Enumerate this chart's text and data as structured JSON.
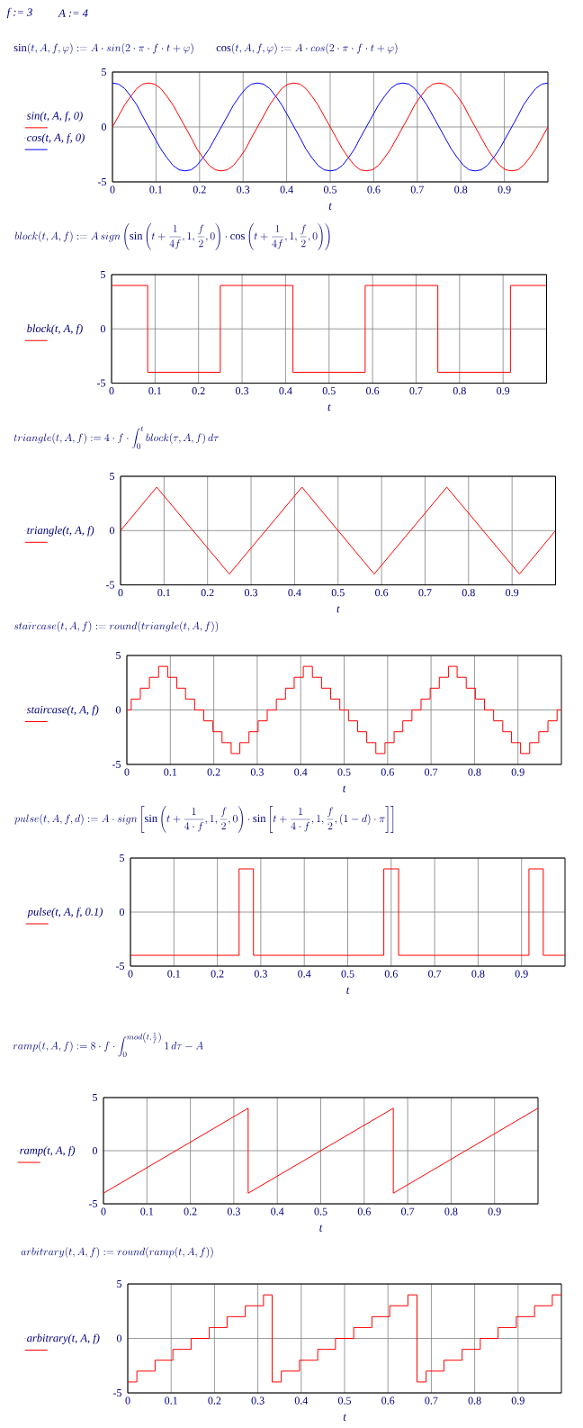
{
  "chart_data": [
    {
      "type": "line",
      "annotations": [
        "f := 3",
        "A := 4"
      ],
      "title": "\\mathrm{sin}(t,A,f,\\varphi) := A\\cdot sin(2\\cdot \\pi \\cdot f\\cdot t+\\varphi)",
      "subtitle": "\\mathrm{cos}(t,A,f,\\varphi) := A\\cdot cos(2\\cdot \\pi \\cdot f\\cdot t+\\varphi)",
      "xlabel": "t",
      "legend": "left",
      "grid": true,
      "xlim": [
        0,
        1
      ],
      "ylim": [
        -5,
        5
      ],
      "xticks": [
        0,
        0.1,
        0.2,
        0.3,
        0.4,
        0.5,
        0.6,
        0.7,
        0.8,
        0.9
      ],
      "yticks": [
        -5,
        0,
        5
      ],
      "x": [
        0,
        0.014,
        0.028,
        0.042,
        0.056,
        0.069,
        0.083,
        0.097,
        0.111,
        0.125,
        0.139,
        0.153,
        0.167,
        0.181,
        0.194,
        0.208,
        0.222,
        0.236,
        0.25,
        0.264,
        0.278,
        0.292,
        0.306,
        0.319,
        0.333,
        0.347,
        0.361,
        0.375,
        0.389,
        0.403,
        0.417,
        0.431,
        0.444,
        0.458,
        0.472,
        0.486,
        0.5,
        0.514,
        0.528,
        0.542,
        0.556,
        0.569,
        0.583,
        0.597,
        0.611,
        0.625,
        0.639,
        0.653,
        0.667,
        0.681,
        0.694,
        0.708,
        0.722,
        0.736,
        0.75,
        0.764,
        0.778,
        0.792,
        0.806,
        0.819,
        0.833,
        0.847,
        0.861,
        0.875,
        0.889,
        0.903,
        0.917,
        0.931,
        0.944,
        0.958,
        0.972,
        0.986,
        1
      ],
      "series": [
        {
          "name": "sin(t, A, f, 0)",
          "color": "#ff0000",
          "values": [
            0,
            1,
            2,
            2.8,
            3.5,
            3.9,
            4,
            3.9,
            3.5,
            2.8,
            2,
            1,
            0,
            -1,
            -2,
            -2.8,
            -3.5,
            -3.9,
            -4,
            -3.9,
            -3.5,
            -2.8,
            -2,
            -1,
            0,
            1,
            2,
            2.8,
            3.5,
            3.9,
            4,
            3.9,
            3.5,
            2.8,
            2,
            1,
            0,
            -1,
            -2,
            -2.8,
            -3.5,
            -3.9,
            -4,
            -3.9,
            -3.5,
            -2.8,
            -2,
            -1,
            0,
            1,
            2,
            2.8,
            3.5,
            3.9,
            4,
            3.9,
            3.5,
            2.8,
            2,
            1,
            0,
            -1,
            -2,
            -2.8,
            -3.5,
            -3.9,
            -4,
            -3.9,
            -3.5,
            -2.8,
            -2,
            -1,
            0
          ]
        },
        {
          "name": "cos(t, A, f, 0)",
          "color": "#0000ff",
          "values": [
            4,
            3.9,
            3.5,
            2.8,
            2,
            1,
            0,
            -1,
            -2,
            -2.8,
            -3.5,
            -3.9,
            -4,
            -3.9,
            -3.5,
            -2.8,
            -2,
            -1,
            0,
            1,
            2,
            2.8,
            3.5,
            3.9,
            4,
            3.9,
            3.5,
            2.8,
            2,
            1,
            0,
            -1,
            -2,
            -2.8,
            -3.5,
            -3.9,
            -4,
            -3.9,
            -3.5,
            -2.8,
            -2,
            -1,
            0,
            1,
            2,
            2.8,
            3.5,
            3.9,
            4,
            3.9,
            3.5,
            2.8,
            2,
            1,
            0,
            -1,
            -2,
            -2.8,
            -3.5,
            -3.9,
            -4,
            -3.9,
            -3.5,
            -2.8,
            -2,
            -1,
            0,
            1,
            2,
            2.8,
            3.5,
            3.9,
            4
          ]
        }
      ]
    },
    {
      "type": "step",
      "title": "block(t,A,f) := A\\,sign\\left(\\mathrm{sin}\\left(t+\\frac{1}{4f},1,\\frac{f}{2},0\\right)\\cdot \\mathrm{cos}\\left(t+\\frac{1}{4f},1,\\frac{f}{2},0\\right)\\right)",
      "xlabel": "t",
      "legend": "left",
      "grid": true,
      "xlim": [
        0,
        1
      ],
      "ylim": [
        -5,
        5
      ],
      "xticks": [
        0,
        0.1,
        0.2,
        0.3,
        0.4,
        0.5,
        0.6,
        0.7,
        0.8,
        0.9
      ],
      "yticks": [
        -5,
        0,
        5
      ],
      "x": [
        0,
        0.083,
        0.25,
        0.417,
        0.583,
        0.75,
        0.917,
        1
      ],
      "series": [
        {
          "name": "block(t, A, f)",
          "color": "#ff0000",
          "values": [
            4,
            -4,
            4,
            -4,
            4,
            -4,
            4,
            4
          ]
        }
      ]
    },
    {
      "type": "line",
      "title": "triangle(t,A,f) := 4\\cdot f\\cdot \\int_{0}^{t} block(\\tau,A,f)\\,d\\tau",
      "xlabel": "t",
      "legend": "left",
      "grid": true,
      "xlim": [
        0,
        1
      ],
      "ylim": [
        -5,
        5
      ],
      "xticks": [
        0,
        0.1,
        0.2,
        0.3,
        0.4,
        0.5,
        0.6,
        0.7,
        0.8,
        0.9
      ],
      "yticks": [
        -5,
        0,
        5
      ],
      "x": [
        0,
        0.083,
        0.25,
        0.417,
        0.583,
        0.75,
        0.917,
        1
      ],
      "series": [
        {
          "name": "triangle(t, A, f)",
          "color": "#ff0000",
          "values": [
            0,
            4,
            -4,
            4,
            -4,
            4,
            -4,
            0
          ]
        }
      ]
    },
    {
      "type": "step",
      "title": "staircase(t,A,f) := round(triangle(t,A,f))",
      "xlabel": "t",
      "legend": "left",
      "grid": true,
      "xlim": [
        0,
        1
      ],
      "ylim": [
        -5,
        5
      ],
      "xticks": [
        0,
        0.1,
        0.2,
        0.3,
        0.4,
        0.5,
        0.6,
        0.7,
        0.8,
        0.9
      ],
      "yticks": [
        -5,
        0,
        5
      ],
      "x": [
        0,
        0.01,
        0.031,
        0.052,
        0.073,
        0.094,
        0.115,
        0.135,
        0.156,
        0.177,
        0.198,
        0.219,
        0.24,
        0.26,
        0.281,
        0.302,
        0.323,
        0.344,
        0.365,
        0.385,
        0.406,
        0.427,
        0.448,
        0.469,
        0.49,
        0.51,
        0.531,
        0.552,
        0.573,
        0.594,
        0.615,
        0.635,
        0.656,
        0.677,
        0.698,
        0.719,
        0.74,
        0.76,
        0.781,
        0.802,
        0.823,
        0.844,
        0.865,
        0.885,
        0.906,
        0.927,
        0.948,
        0.969,
        0.99,
        1
      ],
      "series": [
        {
          "name": "staircase(t, A, f)",
          "color": "#ff0000",
          "values": [
            0,
            1,
            2,
            3,
            4,
            3,
            2,
            1,
            0,
            -1,
            -2,
            -3,
            -4,
            -3,
            -2,
            -1,
            0,
            1,
            2,
            3,
            4,
            3,
            2,
            1,
            0,
            -1,
            -2,
            -3,
            -4,
            -3,
            -2,
            -1,
            0,
            1,
            2,
            3,
            4,
            3,
            2,
            1,
            0,
            -1,
            -2,
            -3,
            -4,
            -3,
            -2,
            -1,
            0,
            0
          ]
        }
      ]
    },
    {
      "type": "step",
      "title": "pulse(t,A,f,d) := A\\cdot sign\\left[\\mathrm{sin}\\left(t+\\frac{1}{4\\cdot f},1,\\frac{f}{2},0\\right)\\cdot \\mathrm{sin}\\left[t+\\frac{1}{4\\cdot f},1,\\frac{f}{2},(1-d)\\cdot \\pi\\right]\\right]",
      "xlabel": "t",
      "legend": "left",
      "grid": true,
      "xlim": [
        0,
        1
      ],
      "ylim": [
        -5,
        5
      ],
      "xticks": [
        0,
        0.1,
        0.2,
        0.3,
        0.4,
        0.5,
        0.6,
        0.7,
        0.8,
        0.9
      ],
      "yticks": [
        -5,
        0,
        5
      ],
      "x": [
        0,
        0.25,
        0.283,
        0.583,
        0.617,
        0.917,
        0.95,
        1
      ],
      "series": [
        {
          "name": "pulse(t, A, f, 0.1)",
          "color": "#ff0000",
          "values": [
            -4,
            4,
            -4,
            4,
            -4,
            4,
            -4,
            -4
          ]
        }
      ]
    },
    {
      "type": "line",
      "title": "ramp(t,A,f) := 8\\cdot f\\cdot \\int_{0}^{mod\\left(t,\\frac{1}{f}\\right)} 1\\,d\\tau - A",
      "xlabel": "t",
      "legend": "left",
      "grid": true,
      "xlim": [
        0,
        1
      ],
      "ylim": [
        -5,
        5
      ],
      "xticks": [
        0,
        0.1,
        0.2,
        0.3,
        0.4,
        0.5,
        0.6,
        0.7,
        0.8,
        0.9
      ],
      "yticks": [
        -5,
        0,
        5
      ],
      "x": [
        0,
        0.333,
        0.333,
        0.667,
        0.667,
        1
      ],
      "series": [
        {
          "name": "ramp(t, A, f)",
          "color": "#ff0000",
          "values": [
            -4,
            4,
            -4,
            4,
            -4,
            4
          ]
        }
      ]
    },
    {
      "type": "step",
      "title": "arbitrary(t,A,f) := round(ramp(t,A,f))",
      "xlabel": "t",
      "legend": "left",
      "grid": true,
      "xlim": [
        0,
        1
      ],
      "ylim": [
        -5,
        5
      ],
      "xticks": [
        0,
        0.1,
        0.2,
        0.3,
        0.4,
        0.5,
        0.6,
        0.7,
        0.8,
        0.9
      ],
      "yticks": [
        -5,
        0,
        5
      ],
      "x": [
        0,
        0.021,
        0.063,
        0.104,
        0.146,
        0.188,
        0.229,
        0.271,
        0.313,
        0.333,
        0.354,
        0.396,
        0.438,
        0.479,
        0.521,
        0.563,
        0.604,
        0.646,
        0.667,
        0.688,
        0.729,
        0.771,
        0.813,
        0.854,
        0.896,
        0.938,
        0.979,
        1
      ],
      "series": [
        {
          "name": "arbitrary(t, A, f)",
          "color": "#ff0000",
          "values": [
            -4,
            -3,
            -2,
            -1,
            0,
            1,
            2,
            3,
            4,
            -4,
            -3,
            -2,
            -1,
            0,
            1,
            2,
            3,
            4,
            -4,
            -3,
            -2,
            -1,
            0,
            1,
            2,
            3,
            4,
            4
          ]
        }
      ]
    }
  ]
}
